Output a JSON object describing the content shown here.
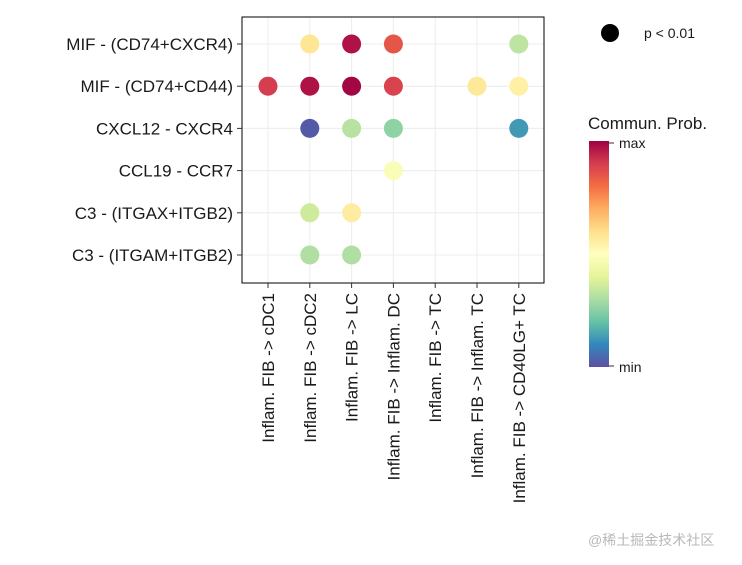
{
  "chart_data": {
    "type": "scatter",
    "subtype": "dot-plot",
    "x_categories": [
      "Inflam. FIB -> cDC1",
      "Inflam. FIB -> cDC2",
      "Inflam. FIB -> LC",
      "Inflam. FIB -> Inflam. DC",
      "Inflam. FIB -> TC",
      "Inflam. FIB -> Inflam. TC",
      "Inflam. FIB -> CD40LG+ TC"
    ],
    "y_categories": [
      "MIF - (CD74+CXCR4)",
      "MIF - (CD74+CD44)",
      "CXCL12 - CXCR4",
      "CCL19 - CCR7",
      "C3 - (ITGAX+ITGB2)",
      "C3 - (ITGAM+ITGB2)"
    ],
    "points": [
      {
        "x": "Inflam. FIB -> cDC2",
        "y": "MIF - (CD74+CXCR4)",
        "prob": 0.58
      },
      {
        "x": "Inflam. FIB -> LC",
        "y": "MIF - (CD74+CXCR4)",
        "prob": 0.97
      },
      {
        "x": "Inflam. FIB -> Inflam. DC",
        "y": "MIF - (CD74+CXCR4)",
        "prob": 0.85
      },
      {
        "x": "Inflam. FIB -> CD40LG+ TC",
        "y": "MIF - (CD74+CXCR4)",
        "prob": 0.33
      },
      {
        "x": "Inflam. FIB -> cDC1",
        "y": "MIF - (CD74+CD44)",
        "prob": 0.9
      },
      {
        "x": "Inflam. FIB -> cDC2",
        "y": "MIF - (CD74+CD44)",
        "prob": 0.97
      },
      {
        "x": "Inflam. FIB -> LC",
        "y": "MIF - (CD74+CD44)",
        "prob": 0.99
      },
      {
        "x": "Inflam. FIB -> Inflam. DC",
        "y": "MIF - (CD74+CD44)",
        "prob": 0.89
      },
      {
        "x": "Inflam. FIB -> Inflam. TC",
        "y": "MIF - (CD74+CD44)",
        "prob": 0.57
      },
      {
        "x": "Inflam. FIB -> CD40LG+ TC",
        "y": "MIF - (CD74+CD44)",
        "prob": 0.55
      },
      {
        "x": "Inflam. FIB -> cDC2",
        "y": "CXCL12 - CXCR4",
        "prob": 0.02
      },
      {
        "x": "Inflam. FIB -> LC",
        "y": "CXCL12 - CXCR4",
        "prob": 0.32
      },
      {
        "x": "Inflam. FIB -> Inflam. DC",
        "y": "CXCL12 - CXCR4",
        "prob": 0.26
      },
      {
        "x": "Inflam. FIB -> CD40LG+ TC",
        "y": "CXCL12 - CXCR4",
        "prob": 0.13
      },
      {
        "x": "Inflam. FIB -> Inflam. DC",
        "y": "CCL19 - CCR7",
        "prob": 0.48
      },
      {
        "x": "Inflam. FIB -> cDC2",
        "y": "C3 - (ITGAX+ITGB2)",
        "prob": 0.36
      },
      {
        "x": "Inflam. FIB -> LC",
        "y": "C3 - (ITGAX+ITGB2)",
        "prob": 0.56
      },
      {
        "x": "Inflam. FIB -> cDC2",
        "y": "C3 - (ITGAM+ITGB2)",
        "prob": 0.31
      },
      {
        "x": "Inflam. FIB -> LC",
        "y": "C3 - (ITGAM+ITGB2)",
        "prob": 0.31
      }
    ],
    "size_legend": {
      "label": "p < 0.01"
    },
    "color_legend": {
      "title": "Commun. Prob.",
      "max_label": "max",
      "min_label": "min",
      "colors": [
        "#5e4fa2",
        "#3288bd",
        "#66c2a5",
        "#abdda4",
        "#e6f598",
        "#ffffbf",
        "#fee08b",
        "#fdae61",
        "#f46d43",
        "#d53e4f",
        "#9e0142"
      ]
    },
    "grid": true,
    "legend_position": "right"
  },
  "watermark": "@稀土掘金技术社区"
}
